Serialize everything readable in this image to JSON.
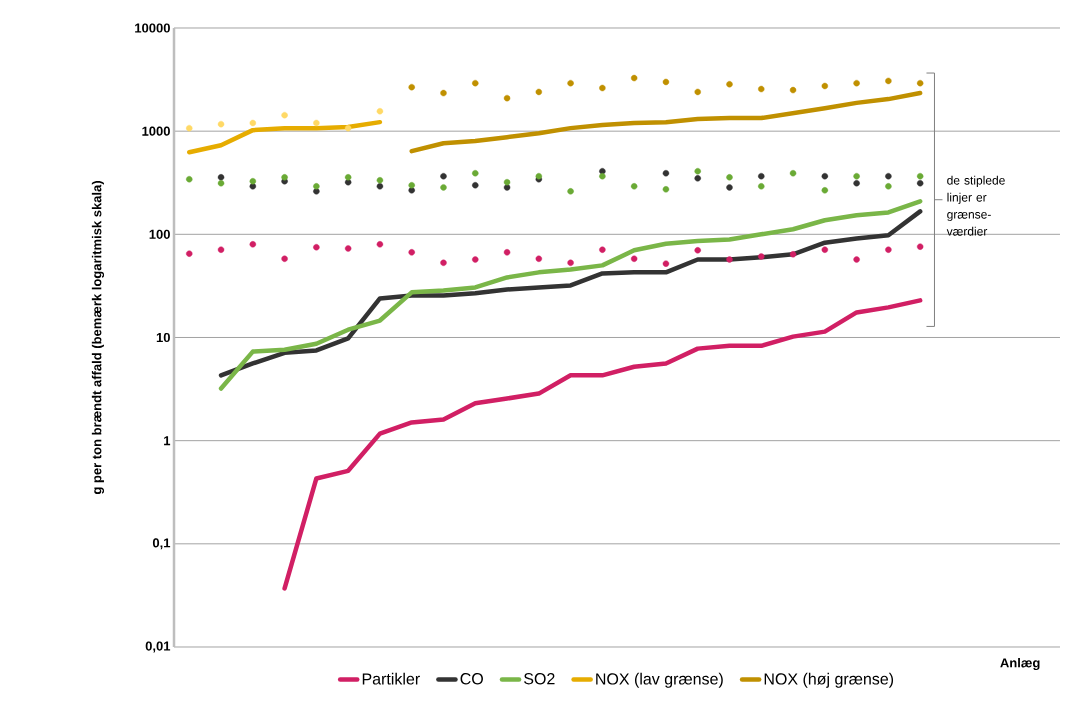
{
  "chart_data": {
    "type": "line",
    "ylabel": "g per ton brændt affald (bemærk logaritmisk skala)",
    "xlabel": "Anlæg",
    "categories": [
      null,
      null,
      null,
      null,
      null,
      null,
      null,
      null,
      null,
      null,
      null,
      null,
      null,
      null,
      null,
      null,
      null,
      null,
      null,
      null,
      null,
      null,
      null,
      null
    ],
    "log": "y",
    "ylim": [
      0.01,
      10000
    ],
    "yticks": [
      {
        "value": 0.01,
        "label": "0,01"
      },
      {
        "value": 0.1,
        "label": "0,1"
      },
      1,
      10,
      100,
      1000,
      10000
    ],
    "grid": "y",
    "legend": "bottom",
    "tick_labels": "y",
    "annotations": [
      "de stiplede linjer er grænse-værdier"
    ],
    "series": [
      {
        "name": "Partikler",
        "color": "#d11f64",
        "values": [
          null,
          null,
          null,
          0.037,
          0.43,
          0.51,
          1.17,
          1.5,
          1.6,
          2.3,
          2.56,
          2.86,
          4.3,
          4.3,
          5.2,
          5.6,
          7.8,
          8.3,
          8.3,
          10.2,
          11.4,
          17.5,
          19.6,
          22.9
        ]
      },
      {
        "name": "CO",
        "color": "#333333",
        "values": [
          null,
          4.3,
          5.6,
          7.1,
          7.5,
          9.8,
          23.9,
          25.5,
          25.5,
          26.8,
          29.2,
          30.6,
          32,
          41.8,
          42.8,
          42.8,
          57,
          57,
          60,
          64,
          83,
          91,
          98,
          167
        ]
      },
      {
        "name": "SO2",
        "color": "#7ab648",
        "values": [
          null,
          3.2,
          7.3,
          7.6,
          8.7,
          11.9,
          14.6,
          27.4,
          28.5,
          30.6,
          38.2,
          42.8,
          45.7,
          50,
          70,
          81,
          86,
          89,
          100,
          112,
          137,
          153,
          163,
          209
        ]
      },
      {
        "name": "NOX (lav grænse)",
        "color": "#e6ac00",
        "values": [
          625,
          731,
          1023,
          1070,
          1070,
          1096,
          1223,
          null,
          null,
          null,
          null,
          null,
          null,
          null,
          null,
          null,
          null,
          null,
          null,
          null,
          null,
          null,
          null,
          null
        ]
      },
      {
        "name": "NOX (høj grænse)",
        "color": "#c09000",
        "values": [
          null,
          null,
          null,
          null,
          null,
          null,
          null,
          640,
          764,
          803,
          875,
          953,
          1070,
          1150,
          1200,
          1223,
          1310,
          1340,
          1340,
          1496,
          1670,
          1880,
          2046,
          2340
        ]
      },
      {
        "type": "scatter",
        "marker": "circle",
        "color": "#d11f64",
        "values": [
          65,
          71,
          80,
          58,
          75,
          73,
          80,
          67,
          53,
          57,
          67,
          58,
          53,
          71,
          58,
          52,
          70,
          57,
          61,
          64,
          71,
          57,
          71,
          76
        ]
      },
      {
        "type": "scatter",
        "marker": "circle",
        "color": "#333333",
        "values": [
          null,
          357,
          292,
          327,
          261,
          320,
          292,
          267,
          366,
          299,
          285,
          342,
          null,
          409,
          null,
          391,
          349,
          285,
          366,
          null,
          366,
          313,
          366,
          313
        ]
      },
      {
        "type": "scatter",
        "marker": "circle",
        "color": "#6aaa35",
        "values": [
          342,
          313,
          327,
          357,
          292,
          357,
          334,
          299,
          285,
          391,
          320,
          366,
          261,
          366,
          292,
          273,
          409,
          357,
          292,
          391,
          267,
          366,
          292,
          366
        ]
      },
      {
        "type": "scatter",
        "marker": "circle",
        "color": "#ffd966",
        "values": [
          1070,
          1170,
          1200,
          1430,
          1200,
          1070,
          1560,
          null,
          null,
          null,
          null,
          null,
          null,
          null,
          null,
          null,
          null,
          null,
          null,
          null,
          null,
          null,
          null,
          null
        ]
      },
      {
        "type": "scatter",
        "marker": "circle",
        "color": "#c09000",
        "values": [
          null,
          null,
          null,
          null,
          null,
          null,
          null,
          2670,
          2340,
          2920,
          2090,
          2400,
          2920,
          2620,
          3270,
          3000,
          2400,
          2850,
          2560,
          2500,
          2740,
          2920,
          3070,
          2920
        ]
      }
    ]
  }
}
